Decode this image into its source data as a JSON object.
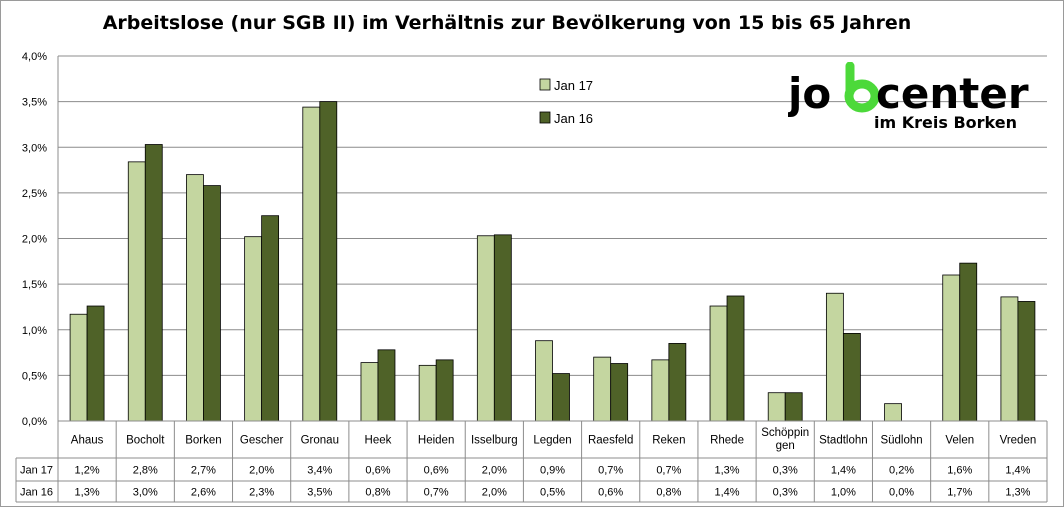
{
  "colors": {
    "jan17": "#c4d6a0",
    "jan16": "#4f6228",
    "grid": "#8c8c8c",
    "logo_text": "#000000",
    "logo_accent": "#4cd93a"
  },
  "logo": {
    "part1": "jo",
    "part2": "center",
    "subtitle": "im Kreis Borken"
  },
  "chart_data": {
    "type": "bar",
    "title": "Arbeitslose (nur SGB II) im Verhältnis zur Bevölkerung von 15 bis 65 Jahren",
    "categories": [
      "Ahaus",
      "Bocholt",
      "Borken",
      "Gescher",
      "Gronau",
      "Heek",
      "Heiden",
      "Isselburg",
      "Legden",
      "Raesfeld",
      "Reken",
      "Rhede",
      "Schöppin gen",
      "Stadtlohn",
      "Südlohn",
      "Velen",
      "Vreden"
    ],
    "category_lines": [
      [
        "Ahaus"
      ],
      [
        "Bocholt"
      ],
      [
        "Borken"
      ],
      [
        "Gescher"
      ],
      [
        "Gronau"
      ],
      [
        "Heek"
      ],
      [
        "Heiden"
      ],
      [
        "Isselburg"
      ],
      [
        "Legden"
      ],
      [
        "Raesfeld"
      ],
      [
        "Reken"
      ],
      [
        "Rhede"
      ],
      [
        "Schöppin",
        "gen"
      ],
      [
        "Stadtlohn"
      ],
      [
        "Südlohn"
      ],
      [
        "Velen"
      ],
      [
        "Vreden"
      ]
    ],
    "series": [
      {
        "name": "Jan 17",
        "values": [
          1.17,
          2.84,
          2.7,
          2.02,
          3.44,
          0.64,
          0.61,
          2.03,
          0.88,
          0.7,
          0.67,
          1.26,
          0.31,
          1.4,
          0.19,
          1.6,
          1.36
        ],
        "labels": [
          "1,2%",
          "2,8%",
          "2,7%",
          "2,0%",
          "3,4%",
          "0,6%",
          "0,6%",
          "2,0%",
          "0,9%",
          "0,7%",
          "0,7%",
          "1,3%",
          "0,3%",
          "1,4%",
          "0,2%",
          "1,6%",
          "1,4%"
        ]
      },
      {
        "name": "Jan 16",
        "values": [
          1.26,
          3.03,
          2.58,
          2.25,
          3.5,
          0.78,
          0.67,
          2.04,
          0.52,
          0.63,
          0.85,
          1.37,
          0.31,
          0.96,
          0.0,
          1.73,
          1.31
        ],
        "labels": [
          "1,3%",
          "3,0%",
          "2,6%",
          "2,3%",
          "3,5%",
          "0,8%",
          "0,7%",
          "2,0%",
          "0,5%",
          "0,6%",
          "0,8%",
          "1,4%",
          "0,3%",
          "1,0%",
          "0,0%",
          "1,7%",
          "1,3%"
        ]
      }
    ],
    "ylim": [
      0,
      4.0
    ],
    "yticks": [
      "0,0%",
      "0,5%",
      "1,0%",
      "1,5%",
      "2,0%",
      "2,5%",
      "3,0%",
      "3,5%",
      "4,0%"
    ],
    "grid": true,
    "legend_position": "top-center",
    "data_table": true
  }
}
